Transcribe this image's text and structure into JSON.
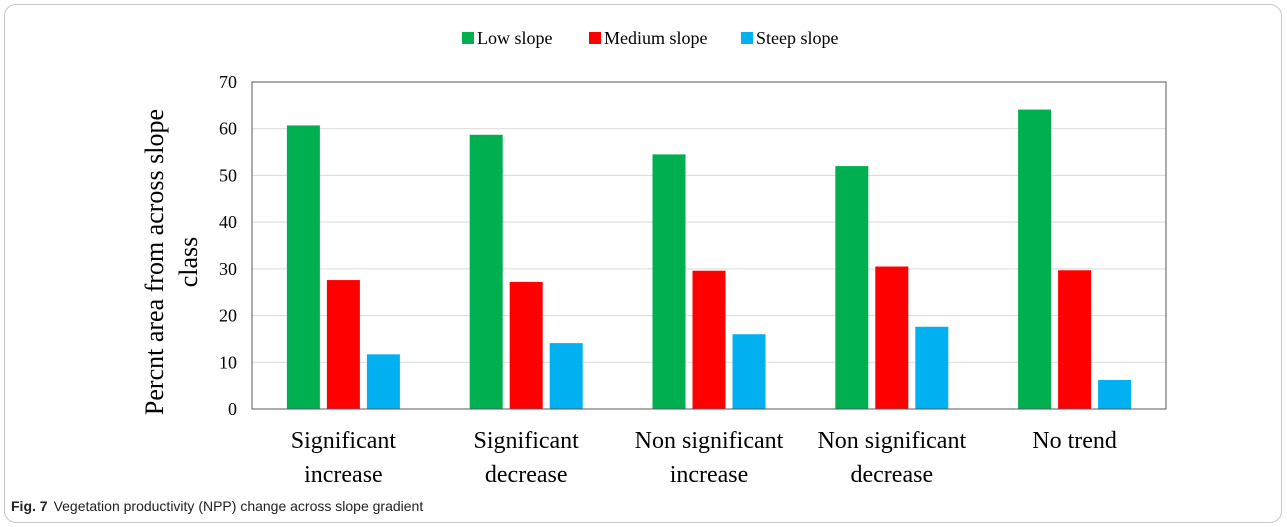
{
  "chart_data": {
    "type": "bar",
    "categories": [
      [
        "Significant",
        "increase"
      ],
      [
        "Significant",
        "decrease"
      ],
      [
        "Non significant",
        "increase"
      ],
      [
        "Non significant",
        "decrease"
      ],
      [
        "No trend",
        ""
      ]
    ],
    "series": [
      {
        "name": "Low slope",
        "color": "#00b050",
        "values": [
          60.7,
          58.7,
          54.5,
          52.0,
          64.1
        ]
      },
      {
        "name": "Medium slope",
        "color": "#ff0000",
        "values": [
          27.6,
          27.2,
          29.6,
          30.5,
          29.7
        ]
      },
      {
        "name": "Steep slope",
        "color": "#00b0f0",
        "values": [
          11.7,
          14.1,
          16.0,
          17.6,
          6.2
        ]
      }
    ],
    "ylabel": [
      "Percnt area from across slope",
      "class"
    ],
    "ylim": [
      0,
      70
    ],
    "yticks": [
      0,
      10,
      20,
      30,
      40,
      50,
      60,
      70
    ],
    "grid": true,
    "legend": "top-center"
  },
  "caption": {
    "label": "Fig. 7",
    "text": "Vegetation productivity (NPP) change across slope gradient"
  }
}
